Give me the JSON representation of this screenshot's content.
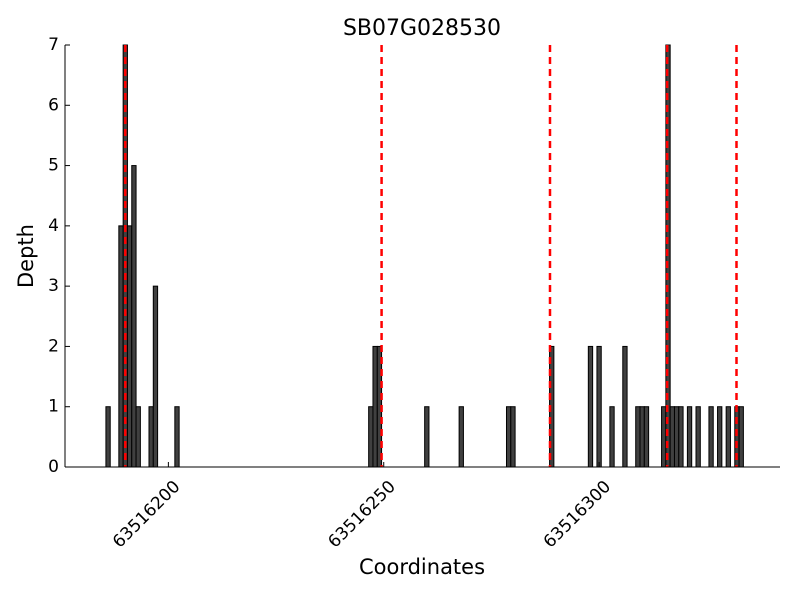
{
  "chart_data": {
    "type": "bar",
    "title": "SB07G028530",
    "xlabel": "Coordinates",
    "ylabel": "Depth",
    "x": [
      63516186,
      63516189,
      63516190,
      63516191,
      63516192,
      63516193,
      63516196,
      63516197,
      63516202,
      63516247,
      63516248,
      63516249,
      63516260,
      63516268,
      63516279,
      63516280,
      63516289,
      63516298,
      63516300,
      63516303,
      63516306,
      63516309,
      63516310,
      63516311,
      63516315,
      63516316,
      63516317,
      63516318,
      63516319,
      63516321,
      63516323,
      63516326,
      63516328,
      63516330,
      63516332,
      63516333
    ],
    "values": [
      1,
      4,
      7,
      4,
      5,
      1,
      1,
      3,
      1,
      1,
      2,
      2,
      1,
      1,
      1,
      1,
      2,
      2,
      2,
      1,
      2,
      1,
      1,
      1,
      1,
      7,
      1,
      1,
      1,
      1,
      1,
      1,
      1,
      1,
      1,
      1
    ],
    "color": "#404040",
    "vlines": [
      63516190,
      63516249.5,
      63516288.6,
      63516315.8,
      63516331.9
    ],
    "vline_color": "#ff0000",
    "xlim": [
      63516176,
      63516342
    ],
    "xticks": [
      63516200,
      63516250,
      63516300
    ],
    "ylim": [
      0,
      7
    ],
    "yticks": [
      0,
      1,
      2,
      3,
      4,
      5,
      6,
      7
    ]
  }
}
